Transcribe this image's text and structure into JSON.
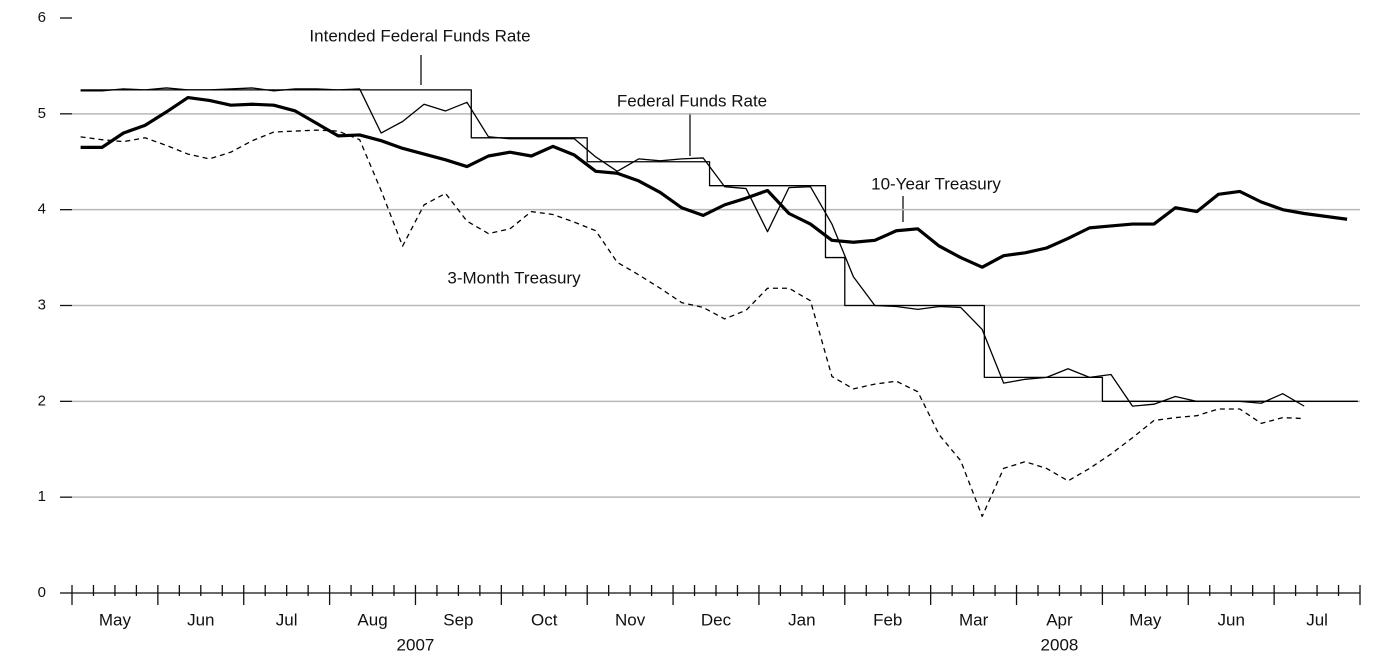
{
  "chart_data": {
    "type": "line",
    "xlim": [
      0,
      60
    ],
    "ylim": [
      0,
      6
    ],
    "yticks": [
      0,
      1,
      2,
      3,
      4,
      5,
      6
    ],
    "grid": true,
    "xticks": [
      {
        "value": 2,
        "label": "May"
      },
      {
        "value": 6,
        "label": "Jun"
      },
      {
        "value": 10,
        "label": "Jul"
      },
      {
        "value": 14,
        "label": "Aug"
      },
      {
        "value": 18,
        "label": "Sep"
      },
      {
        "value": 22,
        "label": "Oct"
      },
      {
        "value": 26,
        "label": "Nov"
      },
      {
        "value": 30,
        "label": "Dec"
      },
      {
        "value": 34,
        "label": "Jan"
      },
      {
        "value": 38,
        "label": "Feb"
      },
      {
        "value": 42,
        "label": "Mar"
      },
      {
        "value": 46,
        "label": "Apr"
      },
      {
        "value": 50,
        "label": "May"
      },
      {
        "value": 54,
        "label": "Jun"
      },
      {
        "value": 58,
        "label": "Jul"
      }
    ],
    "year_ticks": [
      {
        "value": 16,
        "label": "2007"
      },
      {
        "value": 46,
        "label": "2008"
      }
    ],
    "x": [
      0.4,
      1.4,
      2.4,
      3.4,
      4.4,
      5.4,
      6.4,
      7.4,
      8.4,
      9.4,
      10.4,
      11.4,
      12.4,
      13.4,
      14.4,
      15.4,
      16.4,
      17.4,
      18.4,
      19.4,
      20.4,
      21.4,
      22.4,
      23.4,
      24.4,
      25.4,
      26.4,
      27.4,
      28.4,
      29.4,
      30.4,
      31.4,
      32.4,
      33.4,
      34.4,
      35.4,
      36.4,
      37.4,
      38.4,
      39.4,
      40.4,
      41.4,
      42.4,
      43.4,
      44.4,
      45.4,
      46.4,
      47.4,
      48.4,
      49.4,
      50.4,
      51.4,
      52.4,
      53.4,
      54.4,
      55.4,
      56.4,
      57.4,
      58.4,
      59.4
    ],
    "annotations": [
      "Intended Federal Funds Rate",
      "Federal Funds Rate",
      "10-Year Treasury",
      "3-Month Treasury"
    ],
    "series": [
      {
        "name": "10-Year Treasury",
        "color": "#000000",
        "line_width": 3.2,
        "dashed": false,
        "values": [
          4.65,
          4.65,
          4.8,
          4.88,
          5.02,
          5.17,
          5.14,
          5.09,
          5.1,
          5.09,
          5.03,
          4.9,
          4.77,
          4.78,
          4.72,
          4.64,
          4.58,
          4.52,
          4.45,
          4.56,
          4.6,
          4.56,
          4.66,
          4.57,
          4.4,
          4.38,
          4.3,
          4.18,
          4.02,
          3.94,
          4.05,
          4.12,
          4.2,
          3.96,
          3.85,
          3.68,
          3.66,
          3.68,
          3.78,
          3.8,
          3.62,
          3.5,
          3.4,
          3.52,
          3.55,
          3.6,
          3.7,
          3.81,
          3.83,
          3.85,
          3.85,
          4.02,
          3.98,
          4.16,
          4.19,
          4.08,
          4.0,
          3.96,
          3.93,
          3.9
        ]
      },
      {
        "name": "Federal Funds Rate",
        "color": "#000000",
        "line_width": 1.3,
        "dashed": false,
        "values": [
          5.24,
          5.24,
          5.26,
          5.25,
          5.27,
          5.25,
          5.25,
          5.26,
          5.27,
          5.24,
          5.26,
          5.26,
          5.25,
          5.26,
          4.8,
          4.92,
          5.1,
          5.03,
          5.12,
          4.76,
          4.74,
          4.74,
          4.74,
          4.74,
          4.55,
          4.4,
          4.53,
          4.51,
          4.53,
          4.54,
          4.24,
          4.22,
          3.77,
          4.23,
          4.24,
          3.85,
          3.3,
          3.0,
          2.99,
          2.96,
          2.99,
          2.98,
          2.75,
          2.19,
          2.23,
          2.25,
          2.34,
          2.25,
          2.28,
          1.95,
          1.97,
          2.05,
          2.0,
          2.0,
          2.0,
          1.98,
          2.08,
          1.95,
          null,
          null
        ]
      },
      {
        "name": "3-Month Treasury",
        "color": "#000000",
        "line_width": 1.3,
        "dashed": true,
        "values": [
          4.76,
          4.73,
          4.71,
          4.75,
          4.67,
          4.58,
          4.53,
          4.6,
          4.72,
          4.81,
          4.82,
          4.83,
          4.82,
          4.73,
          4.2,
          3.62,
          4.05,
          4.17,
          3.88,
          3.75,
          3.8,
          3.98,
          3.95,
          3.87,
          3.78,
          3.45,
          3.32,
          3.18,
          3.03,
          2.98,
          2.86,
          2.95,
          3.18,
          3.18,
          3.05,
          2.26,
          2.13,
          2.18,
          2.21,
          2.1,
          1.65,
          1.38,
          0.8,
          1.3,
          1.37,
          1.3,
          1.17,
          1.3,
          1.45,
          1.62,
          1.8,
          1.83,
          1.85,
          1.92,
          1.92,
          1.77,
          1.83,
          1.82,
          null,
          null
        ]
      },
      {
        "name": "Intended Federal Funds Rate",
        "color": "#000000",
        "line_width": 1.3,
        "dashed": false,
        "step": "post",
        "x": [
          0.4,
          18.6,
          24.0,
          29.7,
          35.1,
          36.0,
          42.5,
          48.0,
          59.9
        ],
        "values": [
          5.25,
          4.75,
          4.5,
          4.25,
          3.5,
          3.0,
          2.25,
          2.0,
          2.0
        ]
      }
    ]
  }
}
